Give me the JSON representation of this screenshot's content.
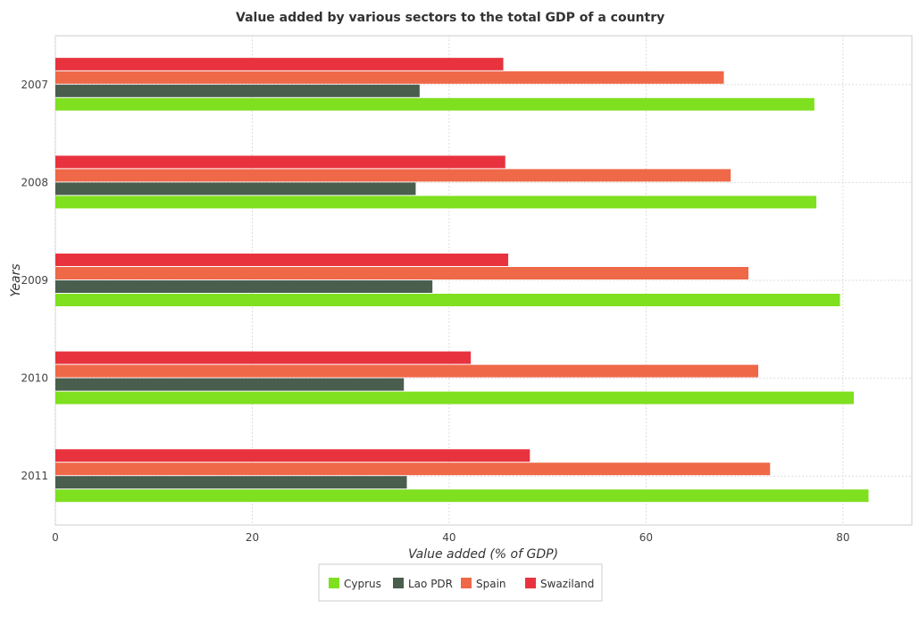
{
  "chart_data": {
    "type": "bar",
    "orientation": "horizontal",
    "title": "Value added by various sectors to the total GDP of a country",
    "xlabel": "Value added (% of GDP)",
    "ylabel": "Years",
    "categories": [
      "2007",
      "2008",
      "2009",
      "2010",
      "2011"
    ],
    "xlim": [
      0,
      87
    ],
    "xticks": [
      0,
      20,
      40,
      60,
      80
    ],
    "grid": true,
    "legend_position": "bottom-center",
    "series": [
      {
        "name": "Cyprus",
        "color": "#7fe01f",
        "values": [
          77.1,
          77.3,
          79.7,
          81.1,
          82.6
        ]
      },
      {
        "name": "Lao PDR",
        "color": "#4a5e4e",
        "values": [
          37.0,
          36.6,
          38.3,
          35.4,
          35.7
        ]
      },
      {
        "name": "Spain",
        "color": "#ef6848",
        "values": [
          67.9,
          68.6,
          70.4,
          71.4,
          72.6
        ]
      },
      {
        "name": "Swaziland",
        "color": "#e8333f",
        "values": [
          45.5,
          45.7,
          46.0,
          42.2,
          48.2
        ]
      }
    ]
  }
}
